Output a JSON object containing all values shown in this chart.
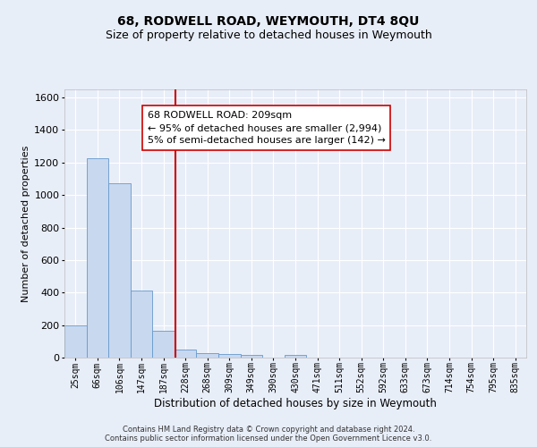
{
  "title": "68, RODWELL ROAD, WEYMOUTH, DT4 8QU",
  "subtitle": "Size of property relative to detached houses in Weymouth",
  "xlabel": "Distribution of detached houses by size in Weymouth",
  "ylabel": "Number of detached properties",
  "bin_labels": [
    "25sqm",
    "66sqm",
    "106sqm",
    "147sqm",
    "187sqm",
    "228sqm",
    "268sqm",
    "309sqm",
    "349sqm",
    "390sqm",
    "430sqm",
    "471sqm",
    "511sqm",
    "552sqm",
    "592sqm",
    "633sqm",
    "673sqm",
    "714sqm",
    "754sqm",
    "795sqm",
    "835sqm"
  ],
  "bar_heights": [
    200,
    1225,
    1070,
    410,
    165,
    50,
    25,
    20,
    15,
    0,
    15,
    0,
    0,
    0,
    0,
    0,
    0,
    0,
    0,
    0,
    0
  ],
  "bar_color": "#c8d8ef",
  "bar_edge_color": "#6699cc",
  "background_color": "#e8eef8",
  "grid_color": "#ffffff",
  "red_line_color": "#cc0000",
  "annotation_text": "68 RODWELL ROAD: 209sqm\n← 95% of detached houses are smaller (2,994)\n5% of semi-detached houses are larger (142) →",
  "annotation_box_color": "#ffffff",
  "annotation_box_edge": "#cc0000",
  "ylim": [
    0,
    1650
  ],
  "yticks": [
    0,
    200,
    400,
    600,
    800,
    1000,
    1200,
    1400,
    1600
  ],
  "footer_text": "Contains HM Land Registry data © Crown copyright and database right 2024.\nContains public sector information licensed under the Open Government Licence v3.0.",
  "title_fontsize": 10,
  "subtitle_fontsize": 9,
  "annotation_fontsize": 8,
  "ylabel_fontsize": 8,
  "xlabel_fontsize": 8.5,
  "xtick_fontsize": 7,
  "ytick_fontsize": 8,
  "footer_fontsize": 6
}
